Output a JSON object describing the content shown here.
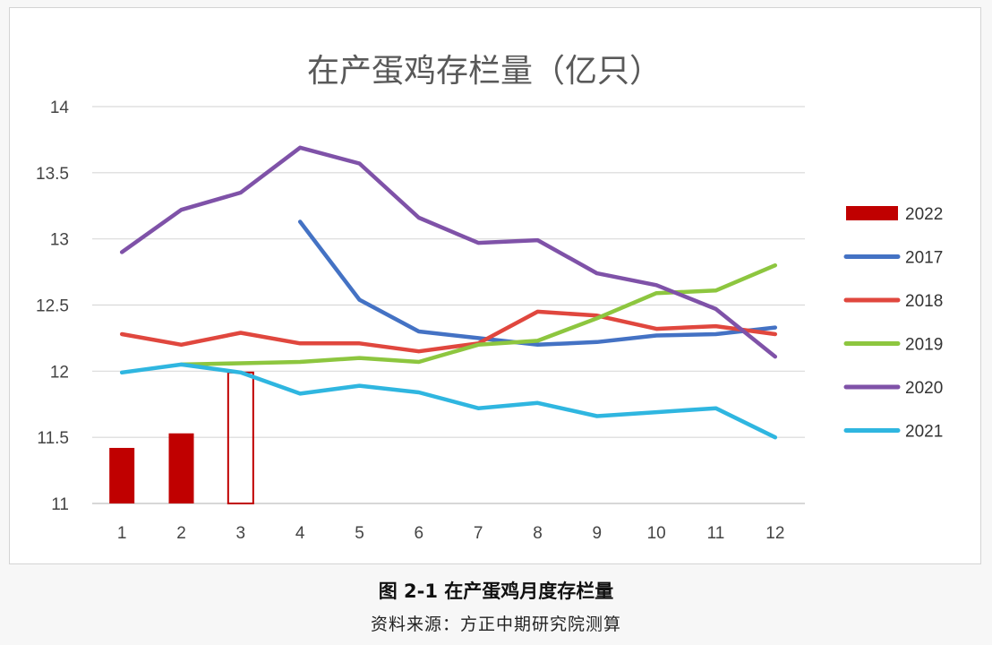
{
  "chart_data": {
    "type": "line",
    "title": "在产蛋鸡存栏量（亿只）",
    "categories": [
      "1",
      "2",
      "3",
      "4",
      "5",
      "6",
      "7",
      "8",
      "9",
      "10",
      "11",
      "12"
    ],
    "ylim": [
      11,
      14
    ],
    "yticks": [
      "11",
      "11.5",
      "12",
      "12.5",
      "13",
      "13.5",
      "14"
    ],
    "grid": true,
    "legend_position": "right",
    "bar_series": {
      "name": "2022",
      "color": "#c00000",
      "values": [
        11.42,
        11.53,
        11.99
      ]
    },
    "series": [
      {
        "name": "2017",
        "color": "#4472c4",
        "values": [
          null,
          null,
          null,
          13.13,
          12.54,
          12.3,
          12.25,
          12.2,
          12.22,
          12.27,
          12.28,
          12.33
        ]
      },
      {
        "name": "2018",
        "color": "#e0473e",
        "values": [
          12.28,
          12.2,
          12.29,
          12.21,
          12.21,
          12.15,
          12.21,
          12.45,
          12.42,
          12.32,
          12.34,
          12.28
        ]
      },
      {
        "name": "2019",
        "color": "#8dc63f",
        "values": [
          null,
          12.05,
          12.06,
          12.07,
          12.1,
          12.07,
          12.2,
          12.23,
          12.4,
          12.59,
          12.61,
          12.8
        ]
      },
      {
        "name": "2020",
        "color": "#7f52a8",
        "values": [
          12.9,
          13.22,
          13.35,
          13.69,
          13.57,
          13.16,
          12.97,
          12.99,
          12.74,
          12.65,
          12.47,
          12.11
        ]
      },
      {
        "name": "2021",
        "color": "#2fb6e0",
        "values": [
          11.99,
          12.05,
          11.99,
          11.83,
          11.89,
          11.84,
          11.72,
          11.76,
          11.66,
          11.69,
          11.72,
          11.5
        ]
      }
    ],
    "legend_order": [
      "2022",
      "2017",
      "2018",
      "2019",
      "2020",
      "2021"
    ]
  },
  "caption": "图 2-1  在产蛋鸡月度存栏量",
  "source": "资料来源：方正中期研究院测算"
}
